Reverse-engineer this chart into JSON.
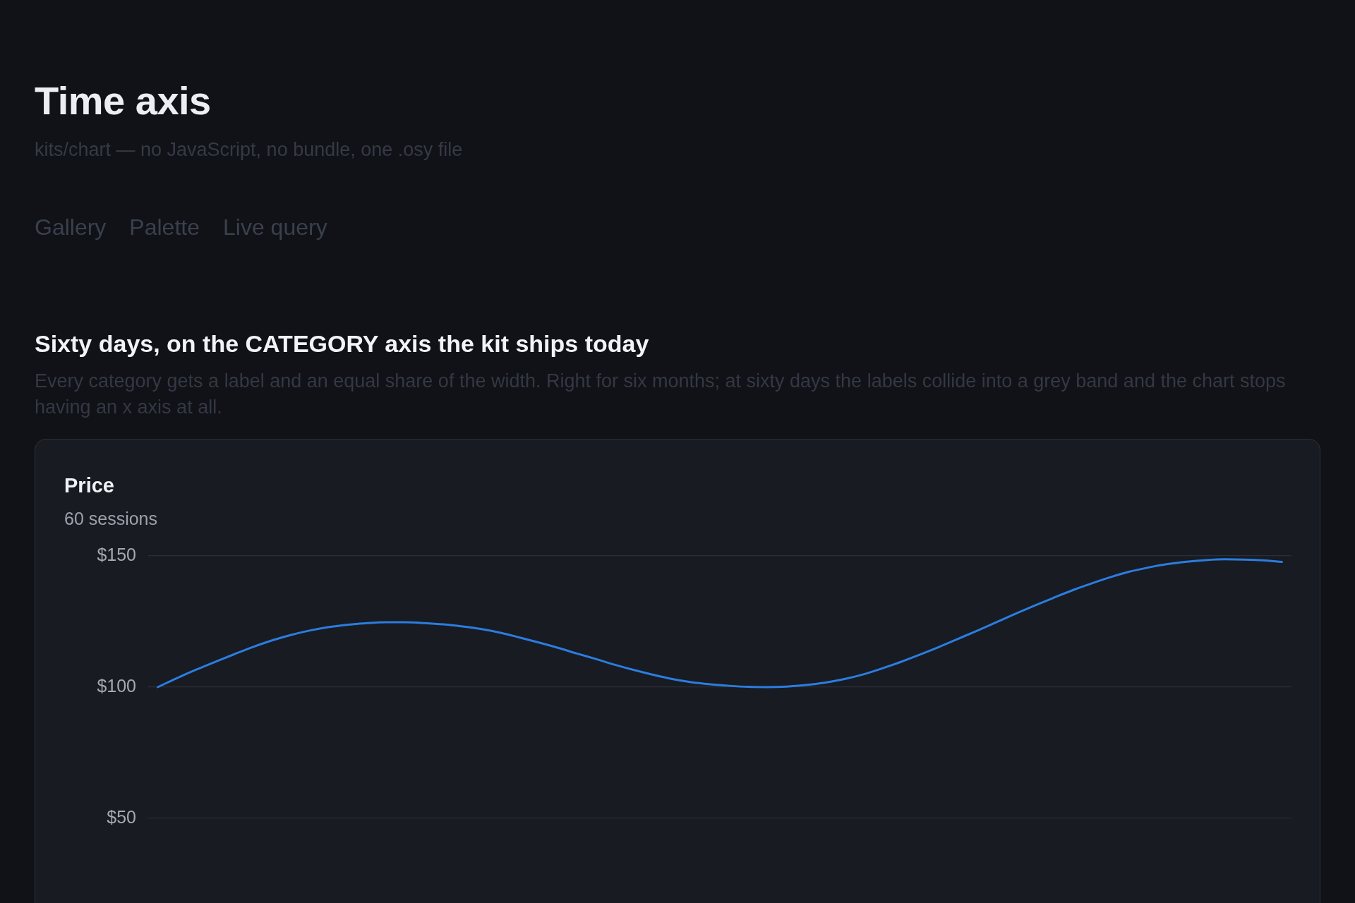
{
  "chart_data": {
    "type": "line",
    "title": "Price",
    "subtitle": "60 sessions",
    "annotations": [
      "Time axis",
      "kits/chart — no JavaScript, no bundle, one .osy file",
      "Gallery",
      "Palette",
      "Live query",
      "Sixty days, on the CATEGORY axis the kit ships today",
      "Every category gets a label and an equal share of the width. Right for six months; at sixty days the labels collide into a grey band and the chart stops having an x axis at all."
    ],
    "categories": [
      null,
      null,
      null,
      null,
      null,
      null,
      null,
      null,
      null,
      null,
      null,
      null,
      null,
      null,
      null,
      null,
      null,
      null,
      null,
      null,
      null,
      null,
      null,
      null,
      null,
      null,
      null,
      null,
      null,
      null,
      null,
      null,
      null,
      null,
      null,
      null,
      null,
      null,
      null,
      null,
      null,
      null,
      null,
      null,
      null,
      null,
      null,
      null,
      null,
      null,
      null,
      null,
      null,
      null,
      null,
      null,
      null,
      null,
      null,
      null
    ],
    "values": [
      100,
      103.4,
      106.6,
      109.6,
      112.5,
      115.3,
      117.8,
      119.9,
      121.6,
      122.9,
      123.8,
      124.4,
      124.7,
      124.7,
      124.4,
      123.9,
      123.1,
      122.1,
      120.7,
      118.9,
      117.0,
      115.0,
      112.8,
      110.7,
      108.5,
      106.5,
      104.7,
      103.1,
      101.9,
      101.1,
      100.5,
      100.1,
      100.0,
      100.2,
      100.8,
      101.7,
      103.0,
      104.8,
      107.1,
      109.6,
      112.4,
      115.3,
      118.4,
      121.5,
      124.7,
      127.9,
      131.0,
      134.0,
      136.9,
      139.5,
      141.9,
      144.0,
      145.6,
      146.9,
      147.8,
      148.4,
      148.7,
      148.6,
      148.3,
      147.7
    ],
    "color": "#2b7de0",
    "ylim": [
      18,
      150
    ],
    "yticks": [
      {
        "value": 50,
        "label": "$50"
      },
      {
        "value": 100,
        "label": "$100"
      },
      {
        "value": 150,
        "label": "$150"
      }
    ],
    "grid": "y",
    "tick_labels": "y",
    "marker": "none"
  }
}
